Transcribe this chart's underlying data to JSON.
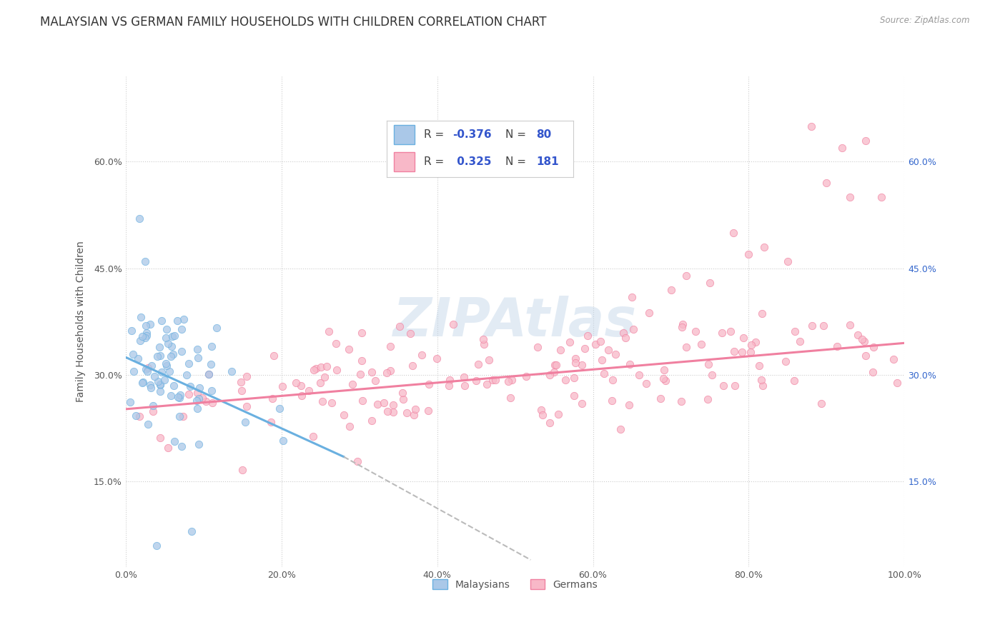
{
  "title": "MALAYSIAN VS GERMAN FAMILY HOUSEHOLDS WITH CHILDREN CORRELATION CHART",
  "source": "Source: ZipAtlas.com",
  "ylabel": "Family Households with Children",
  "watermark": "ZIPAtlas",
  "stat_box": {
    "blue_r": "-0.376",
    "blue_n": 80,
    "pink_r": "0.325",
    "pink_n": 181
  },
  "xlim": [
    0,
    1.0
  ],
  "ylim": [
    0.03,
    0.72
  ],
  "xticks": [
    0.0,
    0.2,
    0.4,
    0.6,
    0.8,
    1.0
  ],
  "yticks": [
    0.15,
    0.3,
    0.45,
    0.6
  ],
  "xticklabels": [
    "0.0%",
    "20.0%",
    "40.0%",
    "60.0%",
    "80.0%",
    "100.0%"
  ],
  "yticklabels": [
    "15.0%",
    "30.0%",
    "45.0%",
    "60.0%"
  ],
  "right_ytick_labels": [
    "15.0%",
    "30.0%",
    "45.0%",
    "60.0%"
  ],
  "right_yticks": [
    0.15,
    0.3,
    0.45,
    0.6
  ],
  "background_color": "#ffffff",
  "grid_color": "#cccccc",
  "title_color": "#333333",
  "axis_label_color": "#555555",
  "blue_line": {
    "x_start": 0.0,
    "x_end": 0.28,
    "y_start": 0.325,
    "y_end": 0.185
  },
  "blue_dashed_line": {
    "x_start": 0.28,
    "x_end": 0.52,
    "y_start": 0.185,
    "y_end": 0.04
  },
  "pink_line": {
    "x_start": 0.0,
    "x_end": 1.0,
    "y_start": 0.252,
    "y_end": 0.345
  },
  "scatter_alpha": 0.75,
  "scatter_size": 55,
  "blue_color": "#6ab0e0",
  "pink_color": "#f080a0",
  "blue_fill": "#aac8e8",
  "pink_fill": "#f8b8c8",
  "stat_text_color": "#3355cc",
  "title_fontsize": 12,
  "axis_label_fontsize": 10,
  "tick_fontsize": 9,
  "stat_fontsize": 11,
  "blue_n": 80,
  "pink_n": 181
}
